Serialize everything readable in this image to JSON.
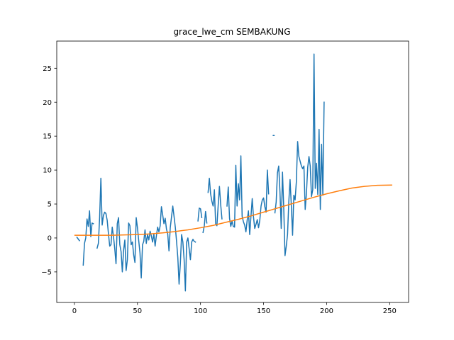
{
  "chart_data": {
    "type": "line",
    "title": "grace_lwe_cm SEMBAKUNG",
    "xlabel": "",
    "ylabel": "",
    "xlim": [
      -14,
      265
    ],
    "ylim": [
      -9.5,
      29
    ],
    "x_ticks": [
      0,
      50,
      100,
      150,
      200,
      250
    ],
    "y_ticks": [
      -5,
      0,
      5,
      10,
      15,
      20,
      25
    ],
    "grid": false,
    "legend": "none",
    "series": [
      {
        "color": "#1f77b4",
        "segments": [
          [
            [
              2,
              0.1
            ],
            [
              4,
              -0.4
            ]
          ],
          [
            [
              7,
              -4.0
            ],
            [
              8,
              -0.8
            ],
            [
              9,
              0
            ],
            [
              10,
              2.8
            ],
            [
              11,
              1.7
            ],
            [
              12,
              4.0
            ],
            [
              13,
              0.2
            ],
            [
              14,
              2.2
            ],
            [
              15,
              2.1
            ]
          ],
          [
            [
              18,
              -1.5
            ],
            [
              19,
              -0.8
            ],
            [
              20,
              3.0
            ],
            [
              21,
              8.8
            ],
            [
              22,
              1.9
            ],
            [
              23,
              3.3
            ],
            [
              24,
              3.8
            ],
            [
              25,
              3.6
            ],
            [
              26,
              2.6
            ],
            [
              27,
              0.6
            ],
            [
              28,
              -1.2
            ],
            [
              29,
              -1.0
            ],
            [
              30,
              1.6
            ],
            [
              31,
              0.2
            ],
            [
              32,
              -1.6
            ],
            [
              33,
              -3.8
            ],
            [
              34,
              2.1
            ],
            [
              35,
              3.0
            ],
            [
              36,
              -1.0
            ],
            [
              37,
              -2.0
            ],
            [
              38,
              -5.0
            ],
            [
              39,
              -1.8
            ],
            [
              40,
              -0.3
            ],
            [
              41,
              -4.8
            ],
            [
              42,
              -3.2
            ],
            [
              43,
              2.2
            ],
            [
              44,
              1.8
            ],
            [
              45,
              -1.0
            ],
            [
              46,
              -0.6
            ],
            [
              47,
              -2.5
            ],
            [
              48,
              -3.6
            ],
            [
              49,
              3.0
            ],
            [
              50,
              1.5
            ],
            [
              51,
              -0.4
            ],
            [
              52,
              -2.2
            ],
            [
              53,
              -5.9
            ],
            [
              54,
              -1.0
            ],
            [
              55,
              -0.5
            ],
            [
              56,
              1.2
            ],
            [
              57,
              -0.8
            ],
            [
              58,
              0.5
            ],
            [
              59,
              -0.3
            ],
            [
              60,
              1.0
            ],
            [
              61,
              0.3
            ],
            [
              62,
              -0.6
            ],
            [
              63,
              0.6
            ],
            [
              64,
              -1.2
            ],
            [
              65,
              0.3
            ],
            [
              66,
              1.6
            ],
            [
              67,
              0.9
            ],
            [
              68,
              1.8
            ],
            [
              69,
              4.6
            ],
            [
              70,
              3.4
            ],
            [
              71,
              2.1
            ],
            [
              72,
              2.9
            ],
            [
              73,
              1.3
            ],
            [
              74,
              0.6
            ],
            [
              75,
              -1.9
            ],
            [
              76,
              1.5
            ],
            [
              77,
              3.1
            ],
            [
              78,
              4.7
            ],
            [
              79,
              3.2
            ],
            [
              80,
              1.6
            ],
            [
              81,
              -0.5
            ],
            [
              82,
              -2.9
            ],
            [
              83,
              -6.8
            ],
            [
              84,
              -3.8
            ],
            [
              85,
              0.5
            ],
            [
              86,
              -0.6
            ],
            [
              87,
              -3.2
            ],
            [
              88,
              -7.8
            ],
            [
              89,
              -0.6
            ],
            [
              90,
              0.0
            ],
            [
              91,
              -1.6
            ],
            [
              92,
              -3.2
            ],
            [
              93,
              -0.6
            ],
            [
              94,
              -0.2
            ],
            [
              95,
              -0.5
            ],
            [
              96,
              -0.6
            ]
          ],
          [
            [
              98,
              2.5
            ],
            [
              99,
              4.4
            ],
            [
              100,
              4.3
            ],
            [
              101,
              3.0
            ]
          ],
          [
            [
              102,
              0.8
            ],
            [
              103,
              1.8
            ],
            [
              104,
              3.9
            ],
            [
              105,
              2.2
            ]
          ],
          [
            [
              106,
              6.7
            ],
            [
              107,
              8.8
            ],
            [
              108,
              6.5
            ],
            [
              109,
              5.4
            ],
            [
              110,
              4.7
            ],
            [
              111,
              7.1
            ],
            [
              112,
              2.1
            ],
            [
              113,
              1.8
            ],
            [
              114,
              4.8
            ],
            [
              115,
              7.6
            ],
            [
              116,
              4.9
            ],
            [
              117,
              2.8
            ]
          ],
          [
            [
              121,
              4.7
            ],
            [
              122,
              7.5
            ],
            [
              123,
              2.9
            ],
            [
              124,
              1.7
            ],
            [
              125,
              2.5
            ],
            [
              126,
              1.7
            ],
            [
              127,
              1.6
            ],
            [
              128,
              10.7
            ],
            [
              129,
              4.7
            ],
            [
              130,
              8.0
            ],
            [
              131,
              5.6
            ],
            [
              132,
              12.1
            ],
            [
              133,
              3.2
            ],
            [
              134,
              2.4
            ],
            [
              135,
              1.9
            ],
            [
              136,
              0.9
            ],
            [
              137,
              2.6
            ],
            [
              138,
              4.0
            ],
            [
              139,
              0.5
            ],
            [
              140,
              3.2
            ],
            [
              141,
              5.8
            ],
            [
              142,
              3.1
            ],
            [
              143,
              1.4
            ],
            [
              144,
              2.0
            ],
            [
              145,
              2.7
            ],
            [
              146,
              1.5
            ],
            [
              147,
              2.6
            ],
            [
              148,
              4.7
            ],
            [
              149,
              5.6
            ],
            [
              150,
              5.9
            ],
            [
              151,
              4.6
            ],
            [
              152,
              3.8
            ],
            [
              153,
              10.0
            ],
            [
              154,
              6.5
            ]
          ],
          [
            [
              158,
              15.1
            ]
          ],
          [
            [
              159,
              3.7
            ],
            [
              160,
              5.3
            ],
            [
              161,
              9.6
            ],
            [
              162,
              10.6
            ],
            [
              163,
              6.8
            ],
            [
              164,
              1.4
            ],
            [
              165,
              9.7
            ],
            [
              166,
              4.4
            ],
            [
              167,
              -2.6
            ],
            [
              168,
              -1.2
            ],
            [
              169,
              0.5
            ],
            [
              170,
              5.3
            ],
            [
              171,
              8.6
            ],
            [
              172,
              4.8
            ],
            [
              173,
              0.4
            ],
            [
              174,
              6.3
            ],
            [
              175,
              5.6
            ],
            [
              176,
              8.3
            ],
            [
              177,
              14.2
            ],
            [
              178,
              12.0
            ],
            [
              179,
              11.3
            ],
            [
              180,
              10.6
            ],
            [
              181,
              10.2
            ],
            [
              182,
              10.6
            ],
            [
              183,
              4.2
            ],
            [
              184,
              6.6
            ],
            [
              185,
              10.4
            ],
            [
              186,
              12.0
            ],
            [
              187,
              10.6
            ],
            [
              188,
              6.1
            ],
            [
              189,
              7.1
            ],
            [
              190,
              27.1
            ],
            [
              191,
              7.3
            ],
            [
              192,
              11.0
            ],
            [
              193,
              6.4
            ],
            [
              194,
              16.0
            ],
            [
              195,
              4.2
            ],
            [
              196,
              13.8
            ],
            [
              197,
              6.3
            ],
            [
              198,
              20.0
            ]
          ]
        ]
      },
      {
        "color": "#ff7f0e",
        "points": [
          [
            0,
            0.4
          ],
          [
            10,
            0.4
          ],
          [
            20,
            0.4
          ],
          [
            30,
            0.4
          ],
          [
            40,
            0.45
          ],
          [
            50,
            0.5
          ],
          [
            60,
            0.6
          ],
          [
            70,
            0.75
          ],
          [
            80,
            0.95
          ],
          [
            90,
            1.2
          ],
          [
            100,
            1.5
          ],
          [
            110,
            1.85
          ],
          [
            120,
            2.3
          ],
          [
            130,
            2.75
          ],
          [
            140,
            3.25
          ],
          [
            150,
            3.8
          ],
          [
            160,
            4.35
          ],
          [
            170,
            4.9
          ],
          [
            180,
            5.45
          ],
          [
            190,
            6.0
          ],
          [
            200,
            6.5
          ],
          [
            210,
            6.95
          ],
          [
            220,
            7.35
          ],
          [
            230,
            7.6
          ],
          [
            240,
            7.75
          ],
          [
            252,
            7.8
          ]
        ]
      }
    ]
  }
}
